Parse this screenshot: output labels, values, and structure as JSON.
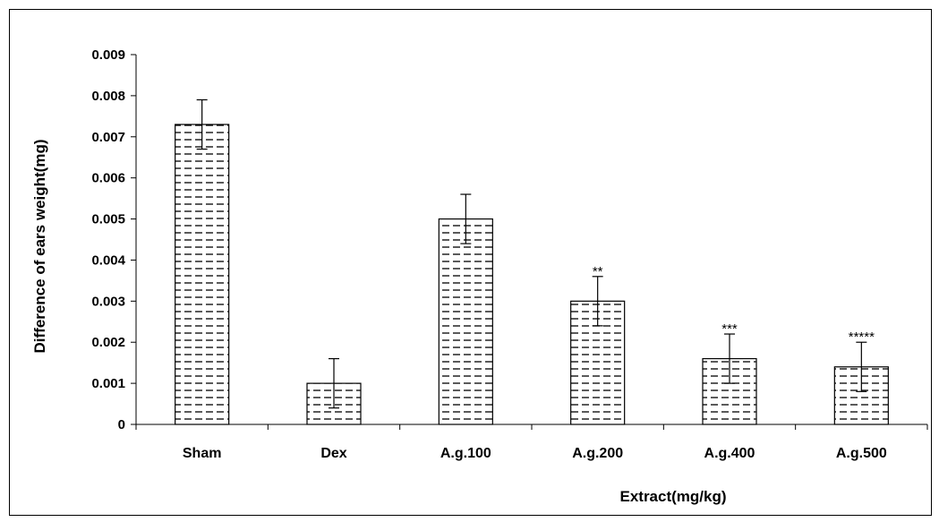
{
  "chart_data": {
    "type": "bar",
    "title": "",
    "xlabel": "Extract(mg/kg)",
    "ylabel": "Difference of ears weight(mg)",
    "ylim": [
      0,
      0.009
    ],
    "yticks": [
      "0",
      "0.001",
      "0.002",
      "0.003",
      "0.004",
      "0.005",
      "0.006",
      "0.007",
      "0.008",
      "0.009"
    ],
    "categories": [
      "Sham",
      "Dex",
      "A.g.100",
      "A.g.200",
      "A.g.400",
      "A.g.500"
    ],
    "values": [
      0.0073,
      0.001,
      0.005,
      0.003,
      0.0016,
      0.0014
    ],
    "errors": [
      0.0006,
      0.0006,
      0.0006,
      0.0006,
      0.0006,
      0.0006
    ],
    "annotations": [
      "",
      "",
      "",
      "**",
      "***",
      "*****"
    ],
    "grid": false,
    "legend": "none",
    "bar_fill": "#ffffff",
    "bar_pattern": "dashed horizontal lines",
    "bar_stroke": "#000000"
  }
}
